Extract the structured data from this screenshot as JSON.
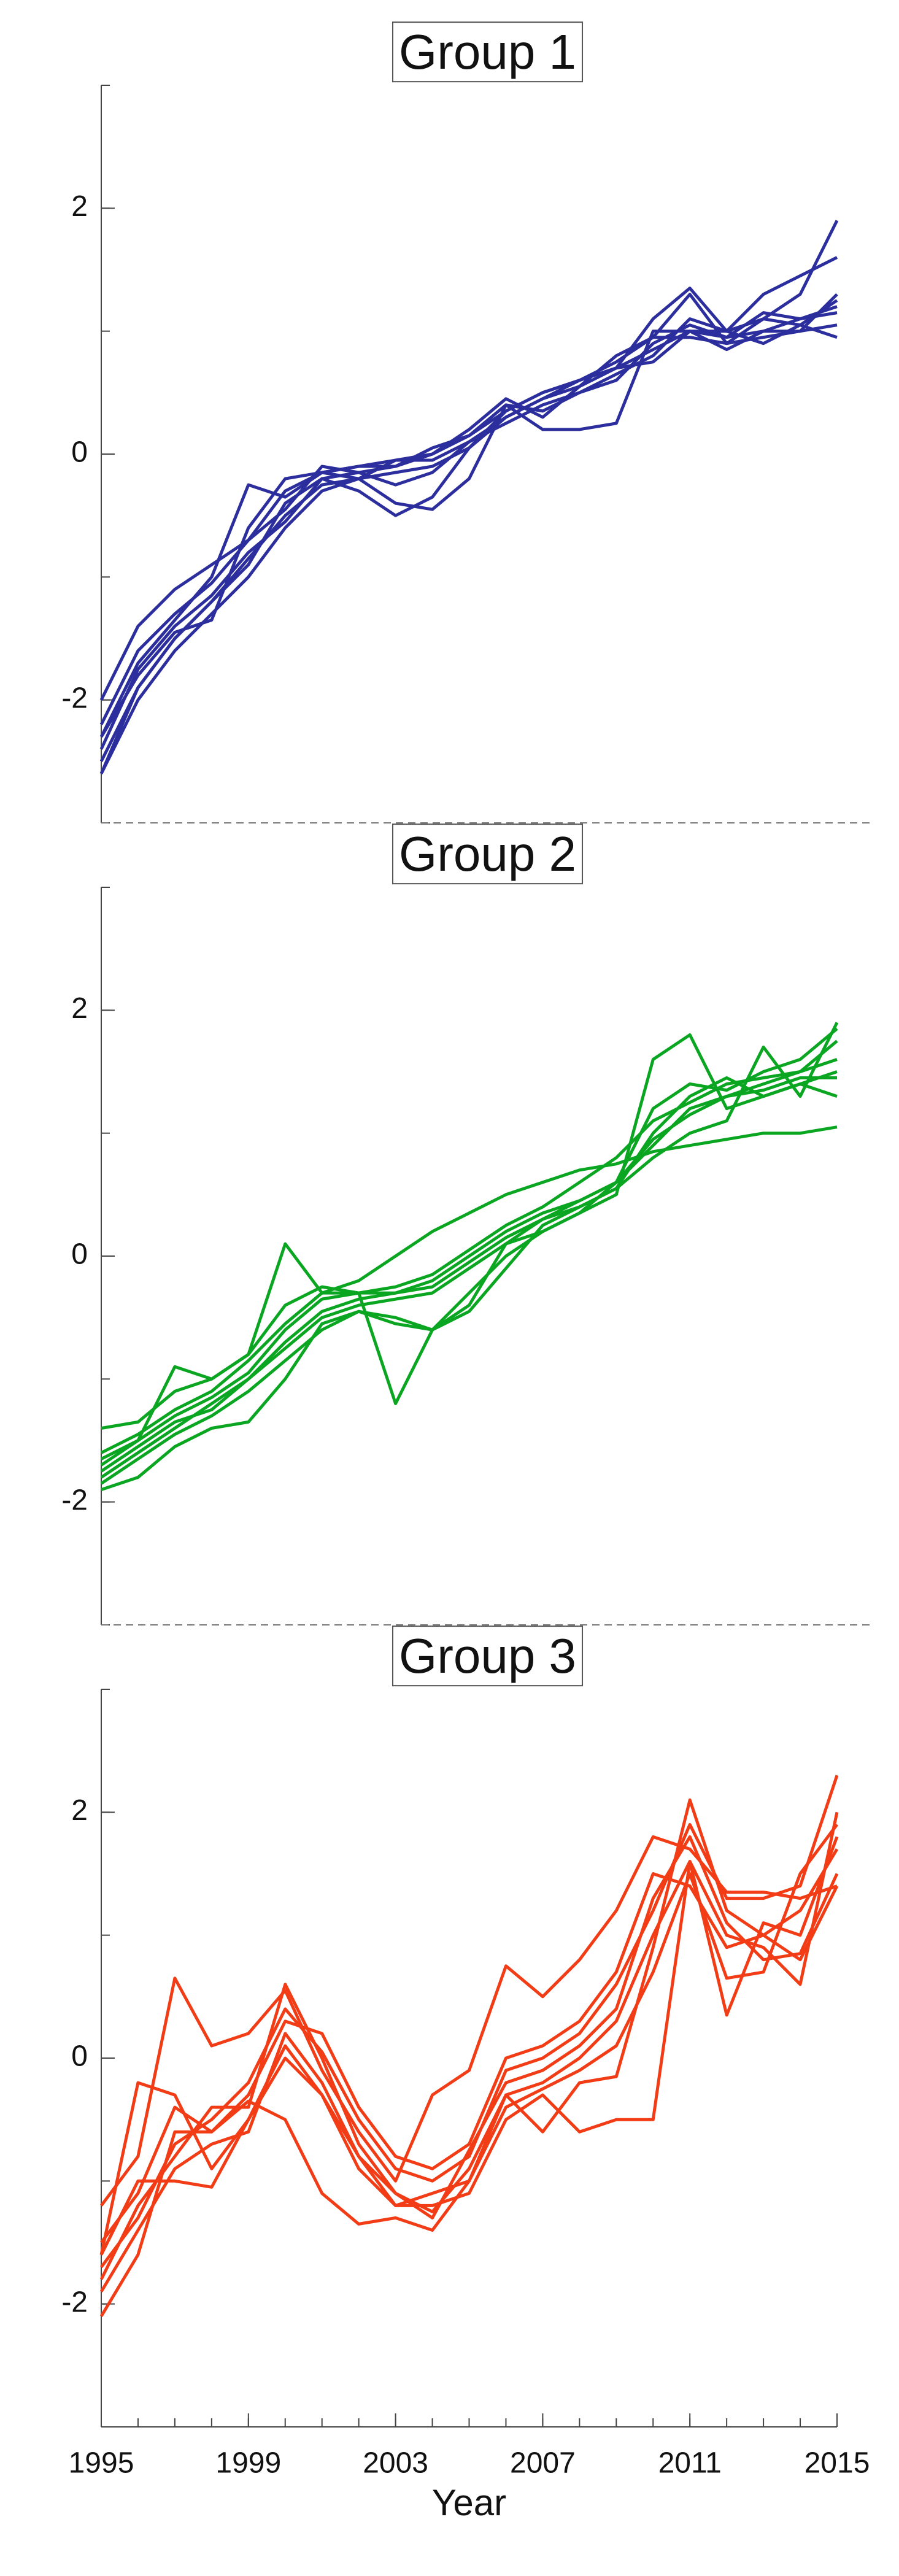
{
  "chart_data": [
    {
      "type": "line",
      "title": "Group 1",
      "x": [
        1995,
        1996,
        1997,
        1998,
        1999,
        2000,
        2001,
        2002,
        2003,
        2004,
        2005,
        2006,
        2007,
        2008,
        2009,
        2010,
        2011,
        2012,
        2013,
        2014,
        2015
      ],
      "xlim": [
        1995,
        2015
      ],
      "ylim": [
        -3,
        3
      ],
      "yticks": [
        -2,
        0,
        2
      ],
      "series": [
        {
          "color": "#2b2e9c",
          "values": [
            -2.6,
            -1.9,
            -1.5,
            -1.2,
            -0.85,
            -0.5,
            -0.25,
            -0.2,
            -0.15,
            -0.1,
            0.05,
            0.3,
            0.45,
            0.6,
            0.75,
            0.95,
            1.3,
            0.9,
            1.1,
            1.3,
            1.9
          ]
        },
        {
          "color": "#2b2e9c",
          "values": [
            -2.0,
            -1.4,
            -1.1,
            -0.9,
            -0.7,
            -0.3,
            -0.15,
            -0.1,
            -0.05,
            0.0,
            0.15,
            0.35,
            0.5,
            0.6,
            0.7,
            1.1,
            1.35,
            1.0,
            1.3,
            1.45,
            1.6
          ]
        },
        {
          "color": "#2b2e9c",
          "values": [
            -2.3,
            -1.7,
            -1.35,
            -1.0,
            -0.25,
            -0.35,
            -0.15,
            -0.2,
            -0.4,
            -0.45,
            -0.2,
            0.4,
            0.2,
            0.2,
            0.25,
            1.0,
            1.0,
            0.85,
            1.0,
            1.0,
            1.3
          ]
        },
        {
          "color": "#2b2e9c",
          "values": [
            -2.5,
            -1.9,
            -1.5,
            -1.2,
            -0.9,
            -0.4,
            -0.2,
            -0.3,
            -0.5,
            -0.35,
            0.05,
            0.35,
            0.5,
            0.6,
            0.7,
            0.85,
            1.0,
            1.0,
            1.1,
            1.05,
            0.95
          ]
        },
        {
          "color": "#2b2e9c",
          "values": [
            -2.2,
            -1.6,
            -1.3,
            -1.05,
            -0.7,
            -0.45,
            -0.1,
            -0.15,
            -0.1,
            0.0,
            0.2,
            0.45,
            0.3,
            0.55,
            0.8,
            0.95,
            0.95,
            0.9,
            0.95,
            1.0,
            1.05
          ]
        },
        {
          "color": "#2b2e9c",
          "values": [
            -2.4,
            -1.75,
            -1.4,
            -1.15,
            -0.8,
            -0.55,
            -0.2,
            -0.15,
            -0.25,
            -0.15,
            0.1,
            0.25,
            0.4,
            0.5,
            0.65,
            0.8,
            1.1,
            1.0,
            0.9,
            1.05,
            1.25
          ]
        },
        {
          "color": "#2b2e9c",
          "values": [
            -2.6,
            -2.0,
            -1.6,
            -1.3,
            -1.0,
            -0.6,
            -0.3,
            -0.2,
            -0.05,
            -0.05,
            0.1,
            0.3,
            0.45,
            0.55,
            0.7,
            0.75,
            1.0,
            0.95,
            1.0,
            1.1,
            1.2
          ]
        },
        {
          "color": "#2b2e9c",
          "values": [
            -2.3,
            -1.8,
            -1.45,
            -1.35,
            -0.6,
            -0.2,
            -0.15,
            -0.1,
            -0.1,
            0.05,
            0.15,
            0.4,
            0.35,
            0.5,
            0.6,
            0.9,
            1.05,
            0.95,
            1.15,
            1.1,
            1.15
          ]
        }
      ]
    },
    {
      "type": "line",
      "title": "Group 2",
      "x": [
        1995,
        1996,
        1997,
        1998,
        1999,
        2000,
        2001,
        2002,
        2003,
        2004,
        2005,
        2006,
        2007,
        2008,
        2009,
        2010,
        2011,
        2012,
        2013,
        2014,
        2015
      ],
      "xlim": [
        1995,
        2015
      ],
      "ylim": [
        -3,
        3
      ],
      "yticks": [
        -2,
        0,
        2
      ],
      "series": [
        {
          "color": "#0aa622",
          "values": [
            -1.8,
            -1.6,
            -1.4,
            -1.2,
            -1.0,
            -0.7,
            -0.45,
            -0.35,
            -0.3,
            -0.2,
            0.0,
            0.2,
            0.35,
            0.45,
            0.6,
            0.9,
            1.2,
            1.3,
            1.4,
            1.5,
            1.6
          ]
        },
        {
          "color": "#0aa622",
          "values": [
            -1.4,
            -1.35,
            -1.1,
            -1.0,
            -0.8,
            0.1,
            -0.3,
            -0.3,
            -1.2,
            -0.6,
            -0.4,
            0.1,
            0.2,
            0.35,
            0.5,
            1.6,
            1.8,
            1.2,
            1.3,
            1.4,
            1.5
          ]
        },
        {
          "color": "#0aa622",
          "values": [
            -1.9,
            -1.8,
            -1.55,
            -1.4,
            -1.35,
            -1.0,
            -0.55,
            -0.45,
            -0.5,
            -0.6,
            -0.45,
            -0.1,
            0.25,
            0.4,
            0.55,
            0.8,
            1.0,
            1.1,
            1.7,
            1.3,
            1.9
          ]
        },
        {
          "color": "#0aa622",
          "values": [
            -1.6,
            -1.45,
            -1.25,
            -1.1,
            -0.85,
            -0.55,
            -0.3,
            -0.2,
            0.0,
            0.2,
            0.35,
            0.5,
            0.6,
            0.7,
            0.75,
            0.85,
            0.9,
            0.95,
            1.0,
            1.0,
            1.05
          ]
        },
        {
          "color": "#0aa622",
          "values": [
            -1.7,
            -1.5,
            -0.9,
            -1.0,
            -0.8,
            -0.4,
            -0.25,
            -0.3,
            -0.25,
            -0.15,
            0.05,
            0.25,
            0.4,
            0.6,
            0.8,
            1.1,
            1.25,
            1.4,
            1.45,
            1.5,
            1.75
          ]
        },
        {
          "color": "#0aa622",
          "values": [
            -1.75,
            -1.55,
            -1.35,
            -1.25,
            -1.0,
            -0.75,
            -0.5,
            -0.4,
            -0.35,
            -0.3,
            -0.1,
            0.1,
            0.3,
            0.45,
            0.6,
            0.95,
            1.15,
            1.3,
            1.35,
            1.45,
            1.45
          ]
        },
        {
          "color": "#0aa622",
          "values": [
            -1.65,
            -1.5,
            -1.3,
            -1.15,
            -0.95,
            -0.6,
            -0.35,
            -0.3,
            -0.3,
            -0.25,
            -0.05,
            0.15,
            0.3,
            0.4,
            0.55,
            1.0,
            1.3,
            1.45,
            1.3,
            1.4,
            1.3
          ]
        },
        {
          "color": "#0aa622",
          "values": [
            -1.85,
            -1.65,
            -1.45,
            -1.3,
            -1.1,
            -0.85,
            -0.6,
            -0.45,
            -0.55,
            -0.6,
            -0.3,
            0.0,
            0.2,
            0.35,
            0.6,
            1.2,
            1.4,
            1.35,
            1.5,
            1.6,
            1.85
          ]
        }
      ]
    },
    {
      "type": "line",
      "title": "Group 3",
      "xlabel": "Year",
      "x": [
        1995,
        1996,
        1997,
        1998,
        1999,
        2000,
        2001,
        2002,
        2003,
        2004,
        2005,
        2006,
        2007,
        2008,
        2009,
        2010,
        2011,
        2012,
        2013,
        2014,
        2015
      ],
      "xlim": [
        1995,
        2015
      ],
      "xticks": [
        1995,
        1999,
        2003,
        2007,
        2011,
        2015
      ],
      "ylim": [
        -3,
        3
      ],
      "yticks": [
        -2,
        0,
        2
      ],
      "series": [
        {
          "color": "#f23c16",
          "values": [
            -1.7,
            -1.3,
            -0.7,
            -0.5,
            -0.2,
            0.4,
            0.05,
            -0.5,
            -0.9,
            -1.0,
            -0.8,
            -0.1,
            0.0,
            0.2,
            0.6,
            1.2,
            1.9,
            1.3,
            1.3,
            1.4,
            2.3
          ]
        },
        {
          "color": "#f23c16",
          "values": [
            -1.2,
            -0.8,
            0.65,
            0.1,
            0.2,
            0.55,
            -0.1,
            -0.6,
            -1.0,
            -0.3,
            -0.1,
            0.75,
            0.5,
            0.8,
            1.2,
            1.8,
            1.7,
            1.35,
            1.35,
            1.3,
            1.4
          ]
        },
        {
          "color": "#f23c16",
          "values": [
            -2.1,
            -1.6,
            -0.6,
            -0.6,
            -0.35,
            -0.5,
            -1.1,
            -1.35,
            -1.3,
            -1.4,
            -1.0,
            -0.3,
            -0.6,
            -0.2,
            -0.15,
            0.9,
            2.1,
            1.2,
            1.0,
            0.8,
            1.4
          ]
        },
        {
          "color": "#f23c16",
          "values": [
            -1.6,
            -0.2,
            -0.3,
            -0.9,
            -0.5,
            0.1,
            -0.3,
            -0.8,
            -1.2,
            -1.2,
            -1.1,
            -0.5,
            -0.3,
            -0.6,
            -0.5,
            -0.5,
            1.6,
            0.35,
            1.1,
            1.0,
            1.8
          ]
        },
        {
          "color": "#f23c16",
          "values": [
            -1.9,
            -1.4,
            -0.9,
            -0.7,
            -0.6,
            0.2,
            -0.2,
            -0.8,
            -1.1,
            -1.25,
            -0.9,
            -0.3,
            -0.2,
            0.0,
            0.3,
            1.0,
            1.6,
            1.0,
            0.9,
            0.6,
            2.0
          ]
        },
        {
          "color": "#f23c16",
          "values": [
            -1.5,
            -1.1,
            -0.4,
            -0.6,
            -0.3,
            0.3,
            0.2,
            -0.4,
            -0.8,
            -0.9,
            -0.7,
            0.0,
            0.1,
            0.3,
            0.7,
            1.5,
            1.4,
            0.9,
            1.0,
            1.2,
            1.7
          ]
        },
        {
          "color": "#f23c16",
          "values": [
            -1.8,
            -1.2,
            -0.8,
            -0.4,
            -0.4,
            0.6,
            0.0,
            -0.7,
            -1.1,
            -1.3,
            -0.75,
            -0.2,
            -0.1,
            0.1,
            0.4,
            1.3,
            1.8,
            1.1,
            0.8,
            0.85,
            1.5
          ]
        },
        {
          "color": "#f23c16",
          "values": [
            -1.6,
            -1.0,
            -1.0,
            -1.05,
            -0.5,
            0.0,
            -0.3,
            -0.9,
            -1.2,
            -1.1,
            -1.0,
            -0.4,
            -0.25,
            -0.1,
            0.1,
            0.7,
            1.5,
            0.65,
            0.7,
            1.5,
            1.9
          ]
        }
      ]
    }
  ]
}
